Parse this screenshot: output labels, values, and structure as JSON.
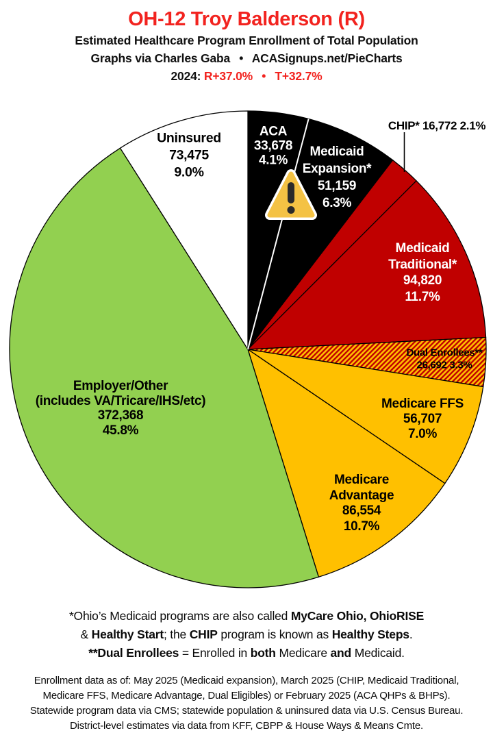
{
  "header": {
    "title": "OH-12 Troy Balderson (R)",
    "subtitle": "Estimated Healthcare Program Enrollment of Total Population",
    "credit": "Graphs via Charles Gaba  •  ACASignups.net/PieCharts",
    "partisan_segments": [
      {
        "t": "2024: ",
        "red": false
      },
      {
        "t": "R+37.0%",
        "red": true
      },
      {
        "t": "  •  ",
        "red": true
      },
      {
        "t": "T+32.7%",
        "red": true
      }
    ]
  },
  "palette": {
    "accent_red": "#f2231f",
    "slice_black": "#000000",
    "slice_red": "#C00000",
    "slice_gold": "#FFC000",
    "slice_green": "#92D050",
    "slice_white": "#FFFFFF",
    "warning_yellow": "#F4C244",
    "warning_glyph": "#2a2a2a",
    "stroke": "#000000"
  },
  "chart_data": {
    "type": "pie",
    "title": "Estimated Healthcare Program Enrollment of Total Population",
    "unit": "people",
    "start_angle_deg": 0,
    "direction": "clockwise",
    "legend_position": "labels-on-slices",
    "slices": [
      {
        "id": "aca",
        "label": "ACA",
        "value": 33678,
        "value_text": "33,678",
        "pct": 4.1,
        "pct_text": "4.1%",
        "color": "#000000",
        "text_color": "#ffffff",
        "hatch": false,
        "label_placement": "internal",
        "label_lines": [
          "ACA",
          "33,678",
          "4.1%"
        ]
      },
      {
        "id": "medicaid-expansion",
        "label": "Medicaid Expansion*",
        "value": 51159,
        "value_text": "51,159",
        "pct": 6.3,
        "pct_text": "6.3%",
        "color": "#000000",
        "text_color": "#ffffff",
        "hatch": false,
        "label_placement": "internal",
        "label_lines": [
          "Medicaid",
          "Expansion*",
          "51,159",
          "6.3%"
        ]
      },
      {
        "id": "chip",
        "label": "CHIP*",
        "value": 16772,
        "value_text": "16,772",
        "pct": 2.1,
        "pct_text": "2.1%",
        "color": "#C00000",
        "text_color": "#000000",
        "hatch": false,
        "label_placement": "external",
        "label_lines": [
          "CHIP* 16,772 2.1%"
        ]
      },
      {
        "id": "medicaid-traditional",
        "label": "Medicaid Traditional*",
        "value": 94820,
        "value_text": "94,820",
        "pct": 11.7,
        "pct_text": "11.7%",
        "color": "#C00000",
        "text_color": "#ffffff",
        "hatch": false,
        "label_placement": "internal",
        "label_lines": [
          "Medicaid",
          "Traditional*",
          "94,820",
          "11.7%"
        ]
      },
      {
        "id": "dual-enrollees",
        "label": "Dual Enrollees**",
        "value": 26692,
        "value_text": "26,692",
        "pct": 3.3,
        "pct_text": "3.3%",
        "color": "#FFC000",
        "hatch": true,
        "hatch_color": "#C00000",
        "text_color": "#000000",
        "label_placement": "internal",
        "label_lines": [
          "Dual Enrollees**",
          "26,692 3.3%"
        ]
      },
      {
        "id": "medicare-ffs",
        "label": "Medicare FFS",
        "value": 56707,
        "value_text": "56,707",
        "pct": 7.0,
        "pct_text": "7.0%",
        "color": "#FFC000",
        "text_color": "#000000",
        "hatch": false,
        "label_placement": "internal",
        "label_lines": [
          "Medicare FFS",
          "56,707",
          "7.0%"
        ]
      },
      {
        "id": "medicare-advantage",
        "label": "Medicare Advantage",
        "value": 86554,
        "value_text": "86,554",
        "pct": 10.7,
        "pct_text": "10.7%",
        "color": "#FFC000",
        "text_color": "#000000",
        "hatch": false,
        "label_placement": "internal",
        "label_lines": [
          "Medicare",
          "Advantage",
          "86,554",
          "10.7%"
        ]
      },
      {
        "id": "employer-other",
        "label": "Employer/Other (includes VA/Tricare/IHS/etc)",
        "value": 372368,
        "value_text": "372,368",
        "pct": 45.8,
        "pct_text": "45.8%",
        "color": "#92D050",
        "text_color": "#000000",
        "hatch": false,
        "label_placement": "internal",
        "label_lines": [
          "Employer/Other",
          "(includes VA/Tricare/IHS/etc)",
          "372,368",
          "45.8%"
        ]
      },
      {
        "id": "uninsured",
        "label": "Uninsured",
        "value": 73475,
        "value_text": "73,475",
        "pct": 9.0,
        "pct_text": "9.0%",
        "color": "#FFFFFF",
        "text_color": "#000000",
        "hatch": false,
        "label_placement": "internal",
        "label_lines": [
          "Uninsured",
          "73,475",
          "9.0%"
        ]
      }
    ],
    "annotations": [
      {
        "type": "warning-icon",
        "on": "divider between ACA and Medicaid Expansion"
      },
      {
        "type": "leader-line",
        "from": "CHIP* label",
        "to": "CHIP slice"
      }
    ]
  },
  "footnotes": {
    "programs": [
      [
        {
          "t": "*Ohio’s Medicaid programs are also called ",
          "b": false
        },
        {
          "t": "MyCare Ohio, OhioRISE",
          "b": true
        }
      ],
      [
        {
          "t": "& ",
          "b": false
        },
        {
          "t": "Healthy Start",
          "b": true
        },
        {
          "t": "; the ",
          "b": false
        },
        {
          "t": "CHIP",
          "b": true
        },
        {
          "t": " program is known as ",
          "b": false
        },
        {
          "t": "Healthy Steps",
          "b": true
        },
        {
          "t": ".",
          "b": false
        }
      ],
      [
        {
          "t": "**Dual Enrollees",
          "b": true
        },
        {
          "t": " = Enrolled in ",
          "b": false
        },
        {
          "t": "both",
          "b": true
        },
        {
          "t": " Medicare ",
          "b": false
        },
        {
          "t": "and",
          "b": true
        },
        {
          "t": " Medicaid.",
          "b": false
        }
      ]
    ],
    "sources": [
      "Enrollment data as of: May 2025 (Medicaid expansion), March 2025 (CHIP, Medicaid Traditional,",
      "Medicare FFS, Medicare Advantage, Dual Eligibles) or February 2025 (ACA QHPs & BHPs).",
      "Statewide program data via CMS; statewide population & uninsured data via U.S. Census Bureau.",
      "District-level estimates via data from KFF, CBPP & House Ways & Means Cmte."
    ]
  }
}
